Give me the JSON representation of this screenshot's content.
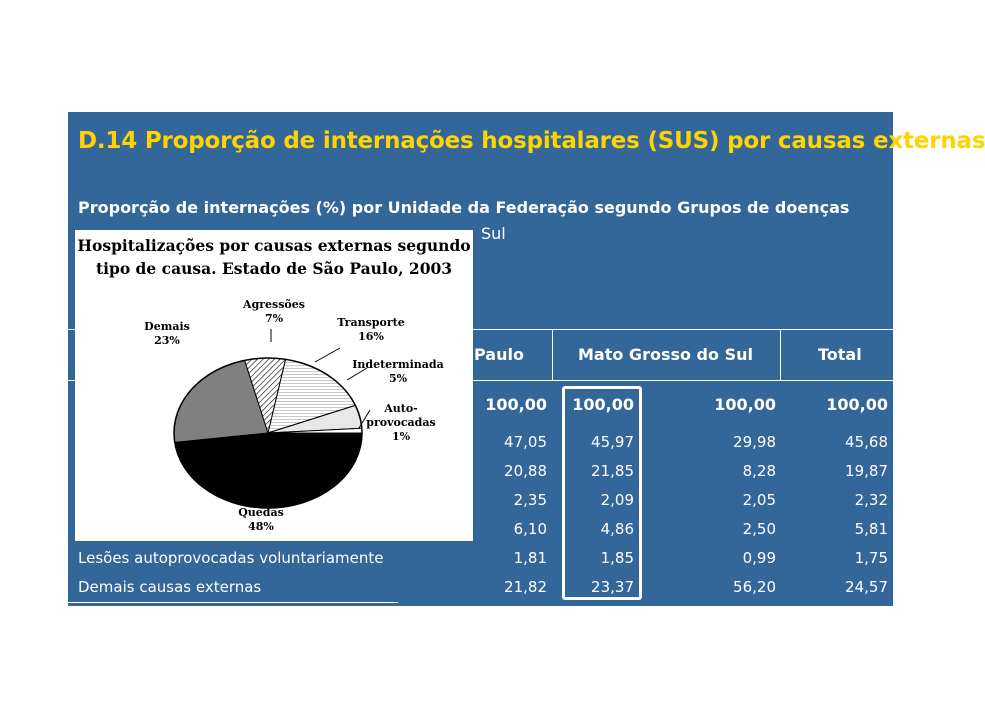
{
  "table": {
    "title": "D.14 Proporção de internações hospitalares (SUS) por causas externas",
    "subtitle": "Proporção de internações (%) por Unidade da Federação segundo Grupos de doenças",
    "uf_line_visible": "Sul",
    "headers": [
      "Paulo",
      "Mato Grosso do Sul",
      "Total"
    ],
    "rows": [
      {
        "label": "",
        "sp": "100,00",
        "ms": "100,00",
        "msul": "100,00",
        "total": "100,00"
      },
      {
        "label": "",
        "sp": "47,05",
        "ms": "45,97",
        "msul": "29,98",
        "total": "45,68"
      },
      {
        "label": "",
        "sp": "20,88",
        "ms": "21,85",
        "msul": "8,28",
        "total": "19,87"
      },
      {
        "label": "",
        "sp": "2,35",
        "ms": "2,09",
        "msul": "2,05",
        "total": "2,32"
      },
      {
        "label": "",
        "sp": "6,10",
        "ms": "4,86",
        "msul": "2,50",
        "total": "5,81"
      },
      {
        "label": "Lesões autoprovocadas voluntariamente",
        "sp": "1,81",
        "ms": "1,85",
        "msul": "0,99",
        "total": "1,75"
      },
      {
        "label": "Demais causas externas",
        "sp": "21,82",
        "ms": "23,37",
        "msul": "56,20",
        "total": "24,57"
      }
    ],
    "colors": {
      "panel": "#336699",
      "title": "#ffd400",
      "text": "#ffffff"
    }
  },
  "chart_data": {
    "type": "pie",
    "title_line1": "Hospitalizações por causas externas segundo",
    "title_line2": "tipo de causa. Estado de São Paulo, 2003",
    "slices": [
      {
        "name": "Quedas",
        "value": 48,
        "label": "48%",
        "color": "#000000"
      },
      {
        "name": "Demais",
        "value": 23,
        "label": "23%",
        "color": "#808080"
      },
      {
        "name": "Agressões",
        "value": 7,
        "label": "7%",
        "color": "#b0b0b0"
      },
      {
        "name": "Transporte",
        "value": 16,
        "label": "16%",
        "color": "#e4e4e4"
      },
      {
        "name": "Indeterminada",
        "value": 5,
        "label": "5%",
        "color": "#f4f4f4"
      },
      {
        "name": "Auto-provocadas",
        "value": 1,
        "label": "1%",
        "color": "#ffffff"
      }
    ],
    "label_lines": {
      "agressoes": [
        "Agressões",
        "7%"
      ],
      "demais": [
        "Demais",
        "23%"
      ],
      "transporte": [
        "Transporte",
        "16%"
      ],
      "indeterminada": [
        "Indeterminada",
        "5%"
      ],
      "autoprovocadas": [
        "Auto-",
        "provocadas",
        "1%"
      ],
      "quedas": [
        "Quedas",
        "48%"
      ]
    }
  }
}
